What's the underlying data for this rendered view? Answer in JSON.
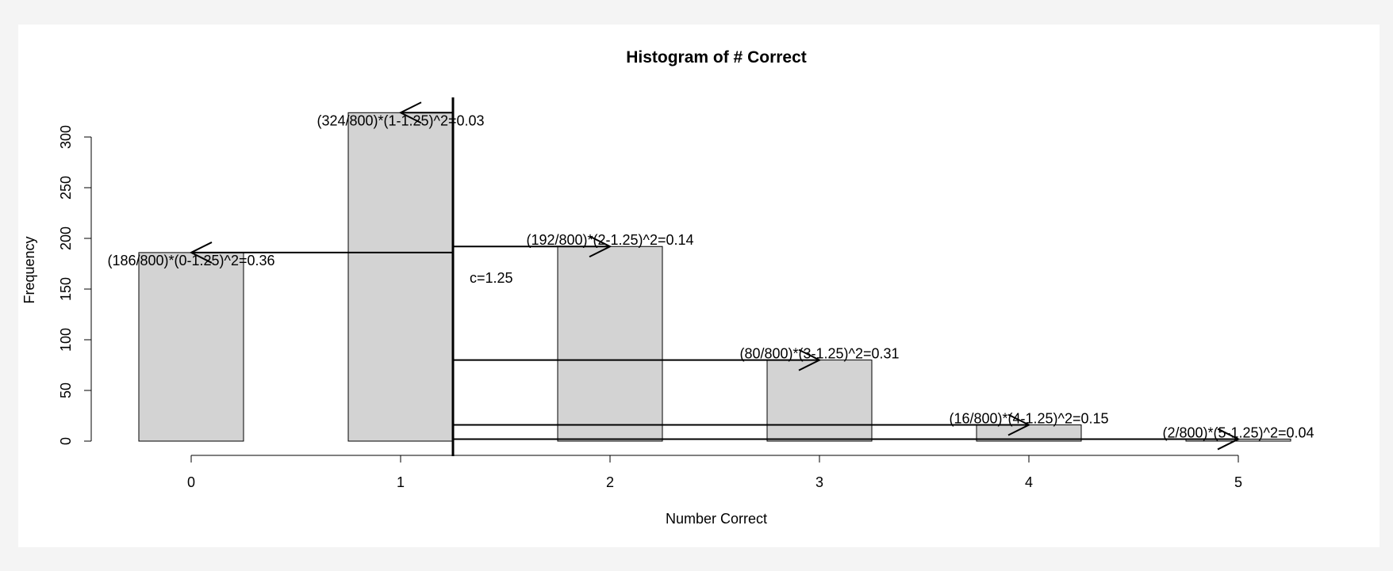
{
  "chart_data": {
    "type": "bar",
    "title": "Histogram of # Correct",
    "xlabel": "Number Correct",
    "ylabel": "Frequency",
    "categories": [
      "0",
      "1",
      "2",
      "3",
      "4",
      "5"
    ],
    "x": [
      0,
      1,
      2,
      3,
      4,
      5
    ],
    "values": [
      186,
      324,
      192,
      80,
      16,
      2
    ],
    "xlim": [
      -0.5,
      5.5
    ],
    "ylim": [
      0,
      300
    ],
    "yticks": [
      0,
      50,
      100,
      150,
      200,
      250,
      300
    ],
    "bar_width": 0.5,
    "bar_color": "#d3d3d3",
    "grid": false,
    "vline": {
      "x": 1.25,
      "label": "c=1.25"
    },
    "annotations": [
      {
        "x": 0,
        "y": 186,
        "text": "(186/800)*(0-1.25)^2=0.36"
      },
      {
        "x": 1,
        "y": 324,
        "text": "(324/800)*(1-1.25)^2=0.03"
      },
      {
        "x": 2,
        "y": 192,
        "text": "(192/800)*(2-1.25)^2=0.14"
      },
      {
        "x": 3,
        "y": 80,
        "text": "(80/800)*(3-1.25)^2=0.31"
      },
      {
        "x": 4,
        "y": 16,
        "text": "(16/800)*(4-1.25)^2=0.15"
      },
      {
        "x": 5,
        "y": 2,
        "text": "(2/800)*(5-1.25)^2=0.04"
      }
    ]
  }
}
